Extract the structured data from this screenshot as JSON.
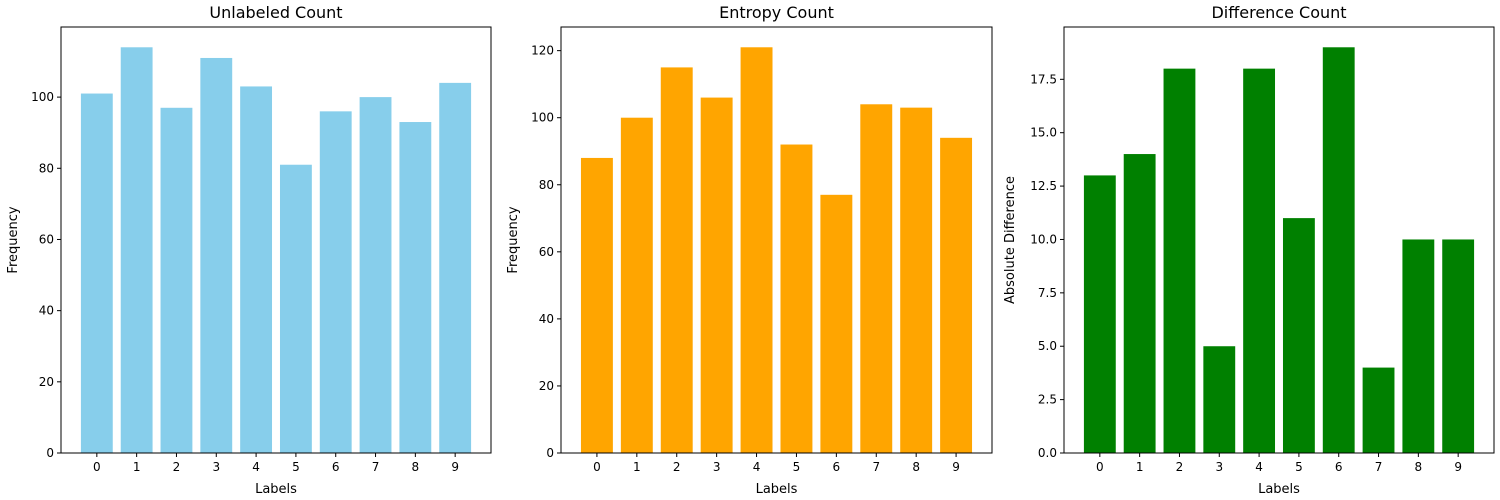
{
  "chart_data": [
    {
      "type": "bar",
      "title": "Unlabeled Count",
      "xlabel": "Labels",
      "ylabel": "Frequency",
      "categories": [
        "0",
        "1",
        "2",
        "3",
        "4",
        "5",
        "6",
        "7",
        "8",
        "9"
      ],
      "values": [
        101,
        114,
        97,
        111,
        103,
        81,
        96,
        100,
        93,
        104
      ],
      "ylim": [
        0,
        119.7
      ],
      "yticks": [
        0,
        20,
        40,
        60,
        80,
        100
      ],
      "ytick_labels": [
        "0",
        "20",
        "40",
        "60",
        "80",
        "100"
      ],
      "color": "#87ceeb",
      "grid": false
    },
    {
      "type": "bar",
      "title": "Entropy Count",
      "xlabel": "Labels",
      "ylabel": "Frequency",
      "categories": [
        "0",
        "1",
        "2",
        "3",
        "4",
        "5",
        "6",
        "7",
        "8",
        "9"
      ],
      "values": [
        88,
        100,
        115,
        106,
        121,
        92,
        77,
        104,
        103,
        94
      ],
      "ylim": [
        0,
        127.05
      ],
      "yticks": [
        0,
        20,
        40,
        60,
        80,
        100,
        120
      ],
      "ytick_labels": [
        "0",
        "20",
        "40",
        "60",
        "80",
        "100",
        "120"
      ],
      "color": "#ffa500",
      "grid": false
    },
    {
      "type": "bar",
      "title": "Difference Count",
      "xlabel": "Labels",
      "ylabel": "Absolute Difference",
      "categories": [
        "0",
        "1",
        "2",
        "3",
        "4",
        "5",
        "6",
        "7",
        "8",
        "9"
      ],
      "values": [
        13,
        14,
        18,
        5,
        18,
        11,
        19,
        4,
        10,
        10
      ],
      "ylim": [
        0,
        19.95
      ],
      "yticks": [
        0,
        2.5,
        5,
        7.5,
        10,
        12.5,
        15,
        17.5
      ],
      "ytick_labels": [
        "0.0",
        "2.5",
        "5.0",
        "7.5",
        "10.0",
        "12.5",
        "15.0",
        "17.5"
      ],
      "color": "#008000",
      "grid": false
    }
  ]
}
